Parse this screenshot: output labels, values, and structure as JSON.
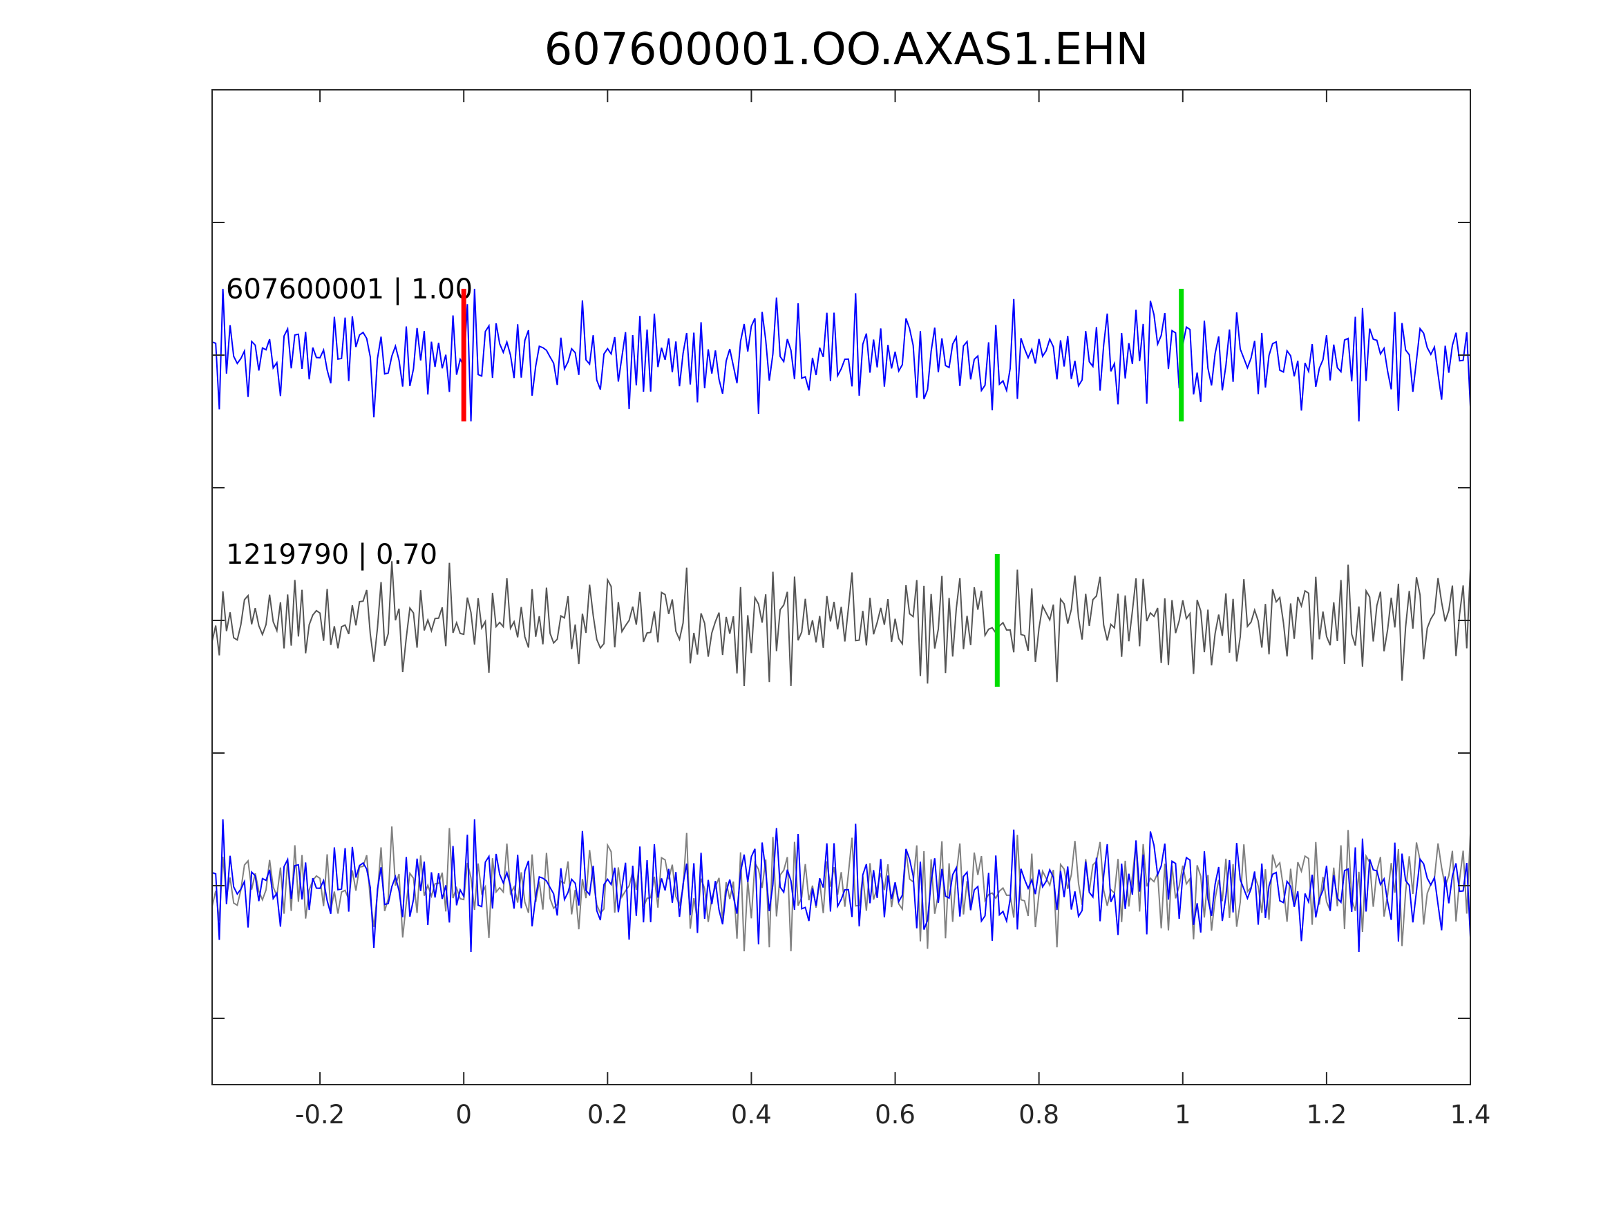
{
  "chart_data": {
    "type": "line",
    "title": "607600001.OO.AXAS1.EHN",
    "xlabel": "",
    "ylabel": "",
    "xlim": [
      -0.35,
      1.4
    ],
    "ylim": [
      -3.5,
      4.0
    ],
    "grid": false,
    "x_ticks": [
      -0.2,
      0,
      0.2,
      0.4,
      0.6,
      0.8,
      1,
      1.2,
      1.4
    ],
    "x_tick_labels": [
      "-0.2",
      "0",
      "0.2",
      "0.4",
      "0.6",
      "0.8",
      "1",
      "1.2",
      "1.4"
    ],
    "y_ticks": [
      -3,
      -2,
      -1,
      0,
      1,
      2,
      3
    ],
    "colors": {
      "template": "#0000ff",
      "detection": "#555555",
      "detection_overlay": "#808080",
      "template_pick": "#ff0000",
      "detection_pick": "#00dd00",
      "axes": "#262626"
    },
    "traces": [
      {
        "label": "607600001 | 1.00",
        "baseline": 2,
        "color": "#0000ff",
        "seed": 7,
        "picks": [
          {
            "x": 0.0,
            "color": "#ff0000"
          },
          {
            "x": 0.998,
            "color": "#00dd00"
          }
        ]
      },
      {
        "label": "1219790 | 0.70",
        "baseline": 0,
        "color": "#555555",
        "seed": 19,
        "picks": [
          {
            "x": 0.742,
            "color": "#00dd00"
          }
        ]
      }
    ],
    "overlay": {
      "baseline": -2,
      "series": [
        {
          "seed": 19,
          "color": "#808080"
        },
        {
          "seed": 7,
          "color": "#0000ff"
        }
      ]
    },
    "sample_interval": 0.005,
    "amplitude": 0.5
  }
}
